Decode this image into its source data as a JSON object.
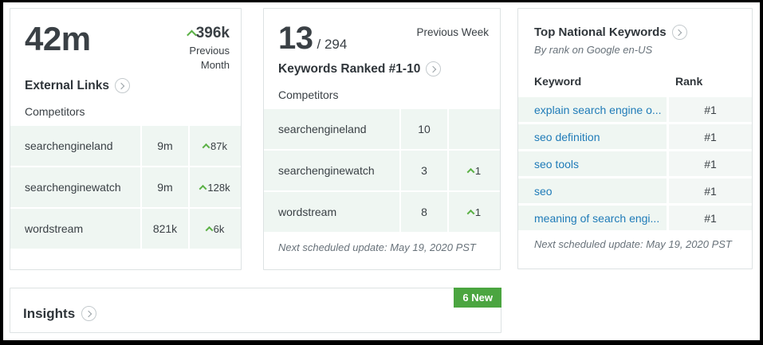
{
  "colors": {
    "accent_green": "#5cb147",
    "badge_green": "#4ba540",
    "link_blue": "#1f7bb8",
    "row_mint": "#eff6f2",
    "text_dark": "#3a4045"
  },
  "icons": {
    "chevron_right_circle": "chevron-right inside circle",
    "up_caret": "chevron-up"
  },
  "external_links": {
    "value": "42m",
    "change": "396k",
    "change_period": "Previous Month",
    "label": "External Links",
    "competitors_label": "Competitors",
    "rows": [
      {
        "name": "searchengineland",
        "value": "9m",
        "change": "87k"
      },
      {
        "name": "searchenginewatch",
        "value": "9m",
        "change": "128k"
      },
      {
        "name": "wordstream",
        "value": "821k",
        "change": "6k"
      }
    ]
  },
  "keywords_ranked": {
    "value": "13",
    "total": "/ 294",
    "period": "Previous Week",
    "label": "Keywords Ranked #1-10",
    "competitors_label": "Competitors",
    "rows": [
      {
        "name": "searchengineland",
        "value": "10",
        "change": ""
      },
      {
        "name": "searchenginewatch",
        "value": "3",
        "change": "1"
      },
      {
        "name": "wordstream",
        "value": "8",
        "change": "1"
      }
    ],
    "footer": "Next scheduled update: May 19, 2020 PST"
  },
  "top_keywords": {
    "title": "Top National Keywords",
    "subtitle": "By rank on Google en-US",
    "columns": {
      "keyword": "Keyword",
      "rank": "Rank"
    },
    "rows": [
      {
        "keyword": "explain search engine o...",
        "rank": "#1"
      },
      {
        "keyword": "seo definition",
        "rank": "#1"
      },
      {
        "keyword": "seo tools",
        "rank": "#1"
      },
      {
        "keyword": "seo",
        "rank": "#1"
      },
      {
        "keyword": "meaning of search engi...",
        "rank": "#1"
      }
    ],
    "footer": "Next scheduled update: May 19, 2020 PST"
  },
  "insights": {
    "title": "Insights",
    "badge": "6 New"
  }
}
